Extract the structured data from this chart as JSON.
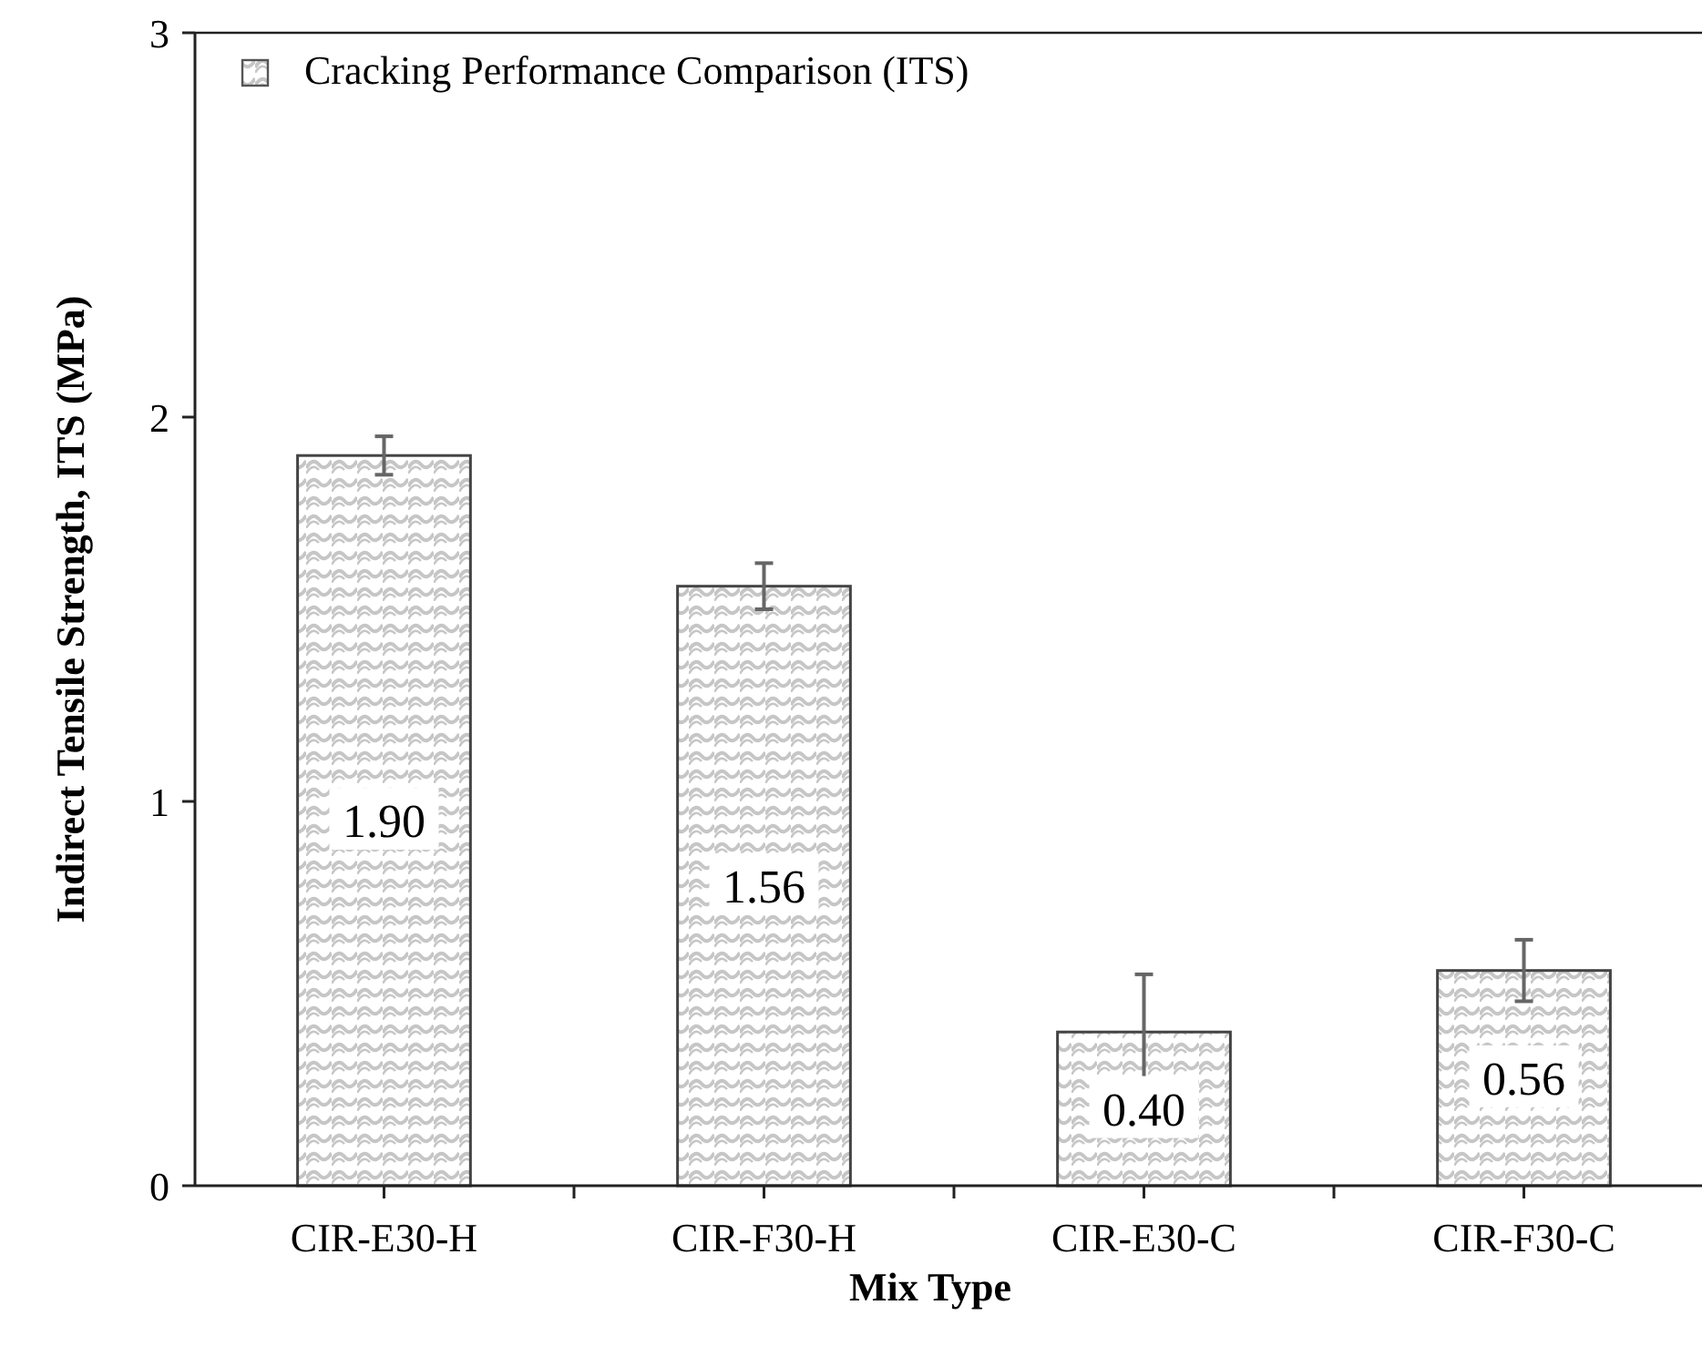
{
  "chart_data": {
    "type": "bar",
    "xlabel": "Mix Type",
    "ylabel": "Indirect Tensile Strength, ITS (MPa)",
    "categories": [
      "CIR-E30-H",
      "CIR-F30-H",
      "CIR-E30-C",
      "CIR-F30-C"
    ],
    "series": [
      {
        "name": "Cracking Performance Comparison (ITS)",
        "color": "#444444",
        "values": [
          1.9,
          1.56,
          0.4,
          0.56
        ],
        "errors": [
          0.05,
          0.06,
          0.15,
          0.08
        ],
        "value_labels": [
          "1.90",
          "1.56",
          "0.40",
          "0.56"
        ]
      }
    ],
    "ylim": [
      0,
      3
    ],
    "yticks": [
      0,
      1,
      2,
      3
    ],
    "legend": "top left",
    "grid": false
  }
}
